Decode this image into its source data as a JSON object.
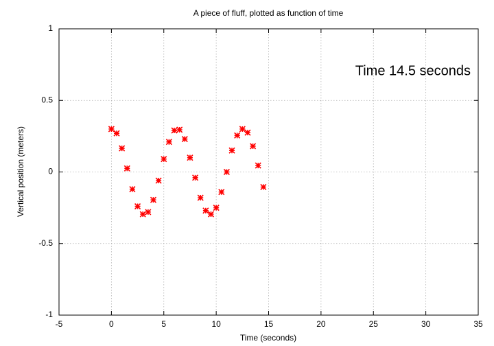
{
  "chart_data": {
    "type": "scatter",
    "title": "A piece of fluff, plotted as function of time",
    "xlabel": "Time (seconds)",
    "ylabel": "Vertical position (meters)",
    "annotation": "Time 14.5 seconds",
    "series": [
      {
        "color": "#ff0000",
        "x": [
          0,
          0.5,
          1,
          1.5,
          2,
          2.5,
          3,
          3.5,
          4,
          4.5,
          5,
          5.5,
          6,
          6.5,
          7,
          7.5,
          8,
          8.5,
          9,
          9.5,
          10,
          10.5,
          11,
          11.5,
          12,
          12.5,
          13,
          13.5,
          14,
          14.5
        ],
        "values": [
          0.3,
          0.27,
          0.165,
          0.025,
          -0.12,
          -0.24,
          -0.295,
          -0.28,
          -0.195,
          -0.06,
          0.09,
          0.21,
          0.29,
          0.295,
          0.23,
          0.1,
          -0.04,
          -0.18,
          -0.27,
          -0.295,
          -0.25,
          -0.14,
          0.0,
          0.15,
          0.255,
          0.3,
          0.275,
          0.18,
          0.045,
          -0.105
        ]
      }
    ],
    "xlim": [
      -5,
      35
    ],
    "xticks": [
      -5,
      0,
      5,
      10,
      15,
      20,
      25,
      30,
      35
    ],
    "ylim": [
      -1,
      1
    ],
    "yticks": [
      -1,
      -0.5,
      0,
      0.5,
      1
    ],
    "grid": true
  }
}
